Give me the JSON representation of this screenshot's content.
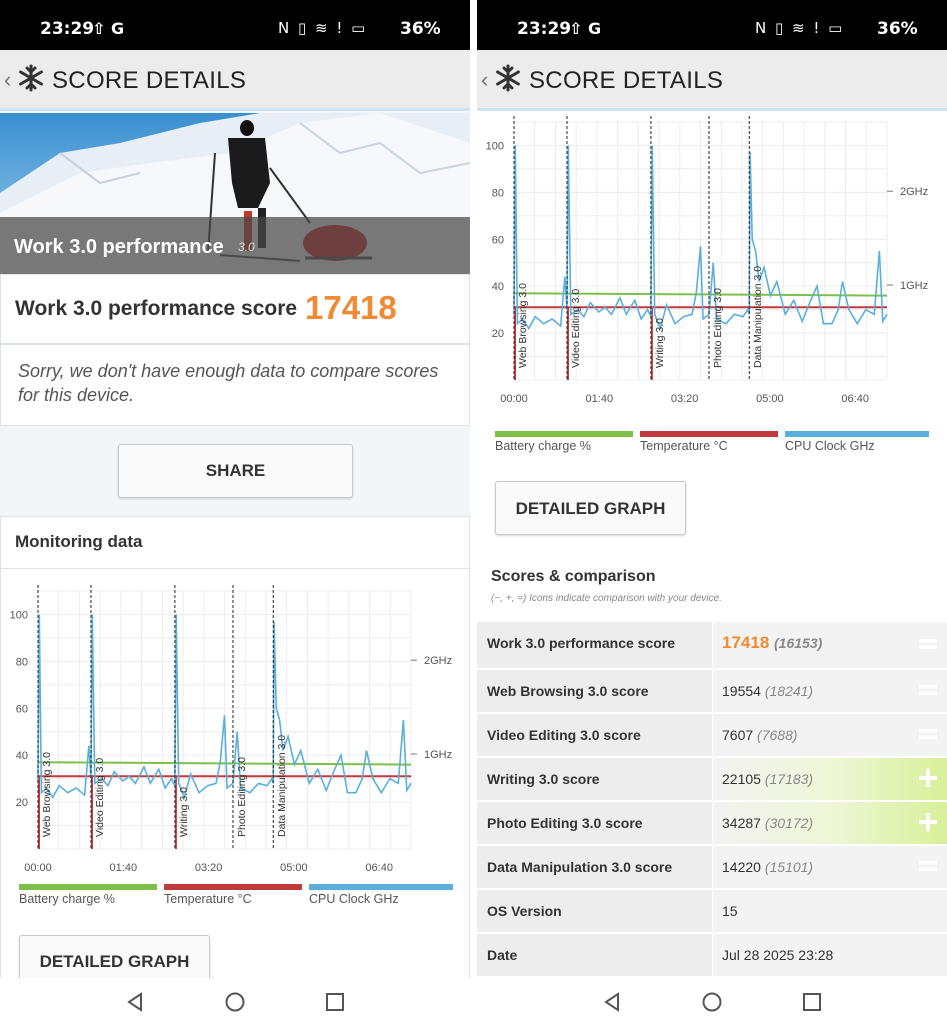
{
  "status": {
    "time": "23:29",
    "carrier_icons": "⇧ G",
    "right_icons": "N  ▯  ≋  !  ▭",
    "battery": "36%"
  },
  "appbar": {
    "title": "SCORE DETAILS"
  },
  "hero": {
    "title": "Work 3.0 performance",
    "version": "3.0"
  },
  "score": {
    "label": "Work 3.0 performance score",
    "value": "17418"
  },
  "compare_note": "Sorry, we don't have enough data to compare scores for this device.",
  "share_label": "SHARE",
  "monitoring": {
    "title": "Monitoring data"
  },
  "detailed_graph_label": "DETAILED GRAPH",
  "chart_data": {
    "type": "line",
    "x_ticks": [
      "00:00",
      "01:40",
      "03:20",
      "05:00",
      "06:40"
    ],
    "y_ticks": [
      20,
      40,
      60,
      80,
      100
    ],
    "right_ticks": [
      "2GHz",
      "1GHz"
    ],
    "segments": [
      "Web Browsing 3.0",
      "Video Editing 3.0",
      "Writing 3.0",
      "Photo Editing 3.0",
      "Data Manipulation 3.0"
    ],
    "segment_starts": [
      0,
      125,
      323,
      460,
      555
    ],
    "x_range": [
      0,
      880
    ],
    "y_range": [
      0,
      110
    ],
    "series": [
      {
        "name": "Battery charge %",
        "color": "#7cc04a",
        "values": [
          [
            0,
            37
          ],
          [
            880,
            36
          ]
        ]
      },
      {
        "name": "Temperature °C",
        "color": "#c0393b",
        "values": [
          [
            0,
            31
          ],
          [
            880,
            31
          ]
        ]
      },
      {
        "name": "CPU Clock GHz",
        "color": "#5aafdc",
        "values": [
          [
            0,
            28
          ],
          [
            3,
            100
          ],
          [
            8,
            24
          ],
          [
            20,
            26
          ],
          [
            35,
            22
          ],
          [
            50,
            27
          ],
          [
            70,
            24
          ],
          [
            90,
            26
          ],
          [
            110,
            23
          ],
          [
            120,
            44
          ],
          [
            125,
            30
          ],
          [
            128,
            100
          ],
          [
            134,
            28
          ],
          [
            150,
            30
          ],
          [
            165,
            27
          ],
          [
            180,
            33
          ],
          [
            200,
            29
          ],
          [
            215,
            31
          ],
          [
            230,
            28
          ],
          [
            250,
            35
          ],
          [
            265,
            28
          ],
          [
            285,
            34
          ],
          [
            300,
            26
          ],
          [
            315,
            30
          ],
          [
            323,
            27
          ],
          [
            326,
            100
          ],
          [
            332,
            28
          ],
          [
            345,
            22
          ],
          [
            360,
            32
          ],
          [
            380,
            24
          ],
          [
            400,
            27
          ],
          [
            420,
            28
          ],
          [
            430,
            37
          ],
          [
            440,
            57
          ],
          [
            446,
            26
          ],
          [
            460,
            28
          ],
          [
            470,
            50
          ],
          [
            478,
            26
          ],
          [
            500,
            24
          ],
          [
            520,
            28
          ],
          [
            540,
            27
          ],
          [
            552,
            30
          ],
          [
            555,
            28
          ],
          [
            557,
            97
          ],
          [
            562,
            60
          ],
          [
            570,
            55
          ],
          [
            578,
            42
          ],
          [
            590,
            48
          ],
          [
            605,
            36
          ],
          [
            620,
            42
          ],
          [
            640,
            28
          ],
          [
            660,
            34
          ],
          [
            680,
            25
          ],
          [
            700,
            34
          ],
          [
            715,
            40
          ],
          [
            730,
            24
          ],
          [
            750,
            24
          ],
          [
            765,
            30
          ],
          [
            775,
            42
          ],
          [
            790,
            30
          ],
          [
            810,
            24
          ],
          [
            830,
            30
          ],
          [
            850,
            28
          ],
          [
            862,
            55
          ],
          [
            870,
            25
          ],
          [
            880,
            28
          ]
        ]
      }
    ]
  },
  "legend": [
    "Battery charge %",
    "Temperature °C",
    "CPU Clock GHz"
  ],
  "scores_section": {
    "title": "Scores & comparison",
    "subtitle": "(−, +, =) Icons indicate comparison with your device."
  },
  "score_rows": [
    {
      "label": "Work 3.0 performance score",
      "value": "17418",
      "compare": "(16153)",
      "icon": "equals"
    },
    {
      "label": "Web Browsing 3.0 score",
      "value": "19554",
      "compare": "(18241)",
      "icon": "equals"
    },
    {
      "label": "Video Editing 3.0 score",
      "value": "7607",
      "compare": "(7688)",
      "icon": "equals"
    },
    {
      "label": "Writing 3.0 score",
      "value": "22105",
      "compare": "(17183)",
      "icon": "plus"
    },
    {
      "label": "Photo Editing 3.0 score",
      "value": "34287",
      "compare": "(30172)",
      "icon": "plus"
    },
    {
      "label": "Data Manipulation 3.0 score",
      "value": "14220",
      "compare": "(15101)",
      "icon": "equals"
    },
    {
      "label": "OS Version",
      "value": "15",
      "compare": "",
      "icon": ""
    },
    {
      "label": "Date",
      "value": "Jul 28 2025 23:28",
      "compare": "",
      "icon": ""
    }
  ],
  "colors": {
    "accent_orange": "#f08a33",
    "battery": "#7cc04a",
    "temperature": "#c0393b",
    "cpu": "#5aafdc"
  }
}
